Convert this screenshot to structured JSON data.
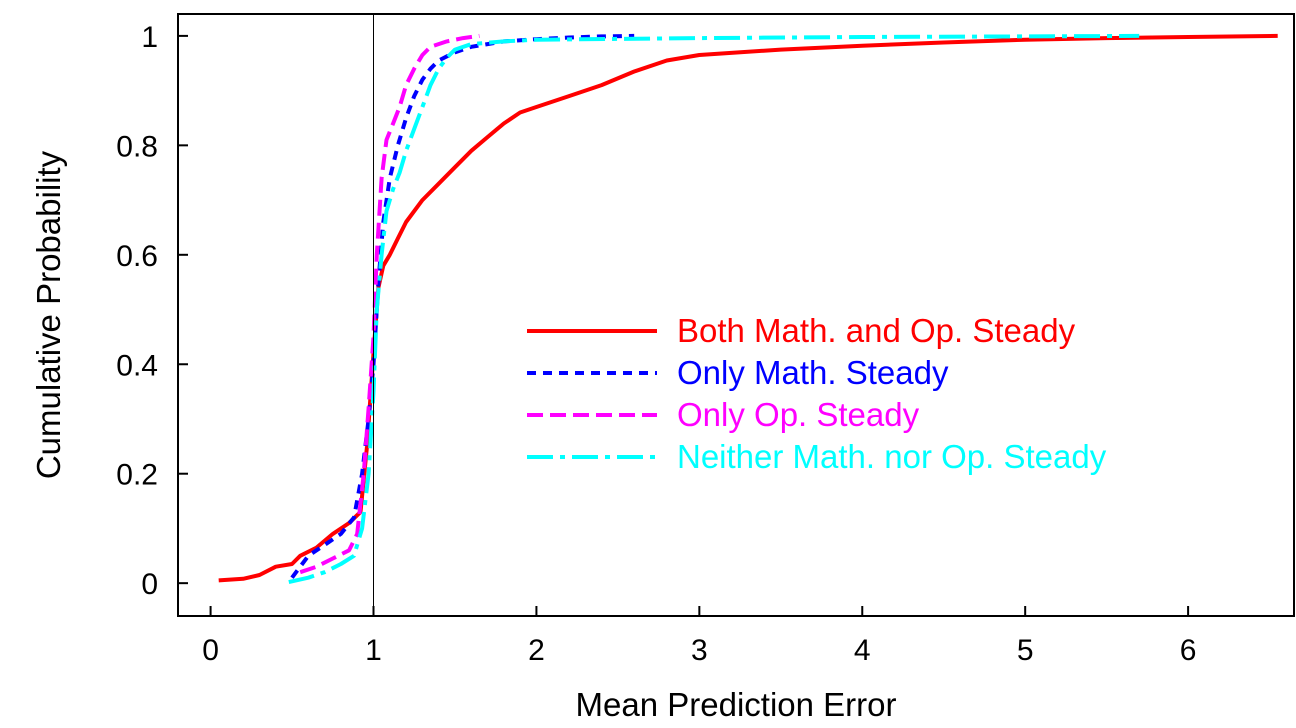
{
  "chart_data": {
    "type": "line",
    "title": "",
    "xlabel": "Mean Prediction Error",
    "ylabel": "Cumulative Probability",
    "xlim": [
      -0.2,
      6.65
    ],
    "ylim": [
      -0.06,
      1.04
    ],
    "xticks": [
      0,
      1,
      2,
      3,
      4,
      5,
      6
    ],
    "xtick_labels": [
      "0",
      "1",
      "2",
      "3",
      "4",
      "5",
      "6"
    ],
    "yticks": [
      0,
      0.2,
      0.4,
      0.6,
      0.8,
      1
    ],
    "ytick_labels": [
      "0",
      "0.2",
      "0.4",
      "0.6",
      "0.8",
      "1"
    ],
    "reference_line_x": 1,
    "grid": false,
    "legend_position": "center-right",
    "series": [
      {
        "name": "Both Math. and Op. Steady",
        "color": "#ff0000",
        "dash": "solid",
        "x": [
          0.05,
          0.2,
          0.3,
          0.4,
          0.5,
          0.55,
          0.65,
          0.75,
          0.85,
          0.92,
          0.96,
          1.0,
          1.03,
          1.06,
          1.1,
          1.15,
          1.2,
          1.3,
          1.4,
          1.5,
          1.6,
          1.7,
          1.8,
          1.9,
          2.0,
          2.2,
          2.4,
          2.6,
          2.8,
          3.0,
          3.5,
          4.0,
          4.5,
          5.0,
          5.5,
          6.0,
          6.55
        ],
        "y": [
          0.005,
          0.008,
          0.015,
          0.03,
          0.035,
          0.05,
          0.065,
          0.09,
          0.11,
          0.13,
          0.25,
          0.42,
          0.54,
          0.58,
          0.6,
          0.63,
          0.66,
          0.7,
          0.73,
          0.76,
          0.79,
          0.815,
          0.84,
          0.86,
          0.87,
          0.89,
          0.91,
          0.935,
          0.955,
          0.965,
          0.975,
          0.982,
          0.988,
          0.993,
          0.996,
          0.998,
          1.0
        ]
      },
      {
        "name": "Only Math. Steady",
        "color": "#0000ff",
        "dash": "short",
        "x": [
          0.5,
          0.55,
          0.6,
          0.7,
          0.8,
          0.88,
          0.93,
          0.97,
          1.0,
          1.03,
          1.06,
          1.1,
          1.15,
          1.2,
          1.25,
          1.3,
          1.35,
          1.4,
          1.5,
          1.6,
          1.8,
          2.0,
          2.2,
          2.4,
          2.6
        ],
        "y": [
          0.01,
          0.03,
          0.05,
          0.07,
          0.09,
          0.12,
          0.2,
          0.3,
          0.4,
          0.55,
          0.66,
          0.74,
          0.8,
          0.85,
          0.89,
          0.92,
          0.94,
          0.955,
          0.97,
          0.98,
          0.99,
          0.994,
          0.997,
          0.999,
          1.0
        ]
      },
      {
        "name": "Only Op. Steady",
        "color": "#ff00ff",
        "dash": "long",
        "x": [
          0.55,
          0.65,
          0.75,
          0.85,
          0.9,
          0.94,
          0.97,
          1.0,
          1.02,
          1.05,
          1.08,
          1.12,
          1.16,
          1.2,
          1.25,
          1.3,
          1.35,
          1.45,
          1.55,
          1.65
        ],
        "y": [
          0.02,
          0.03,
          0.045,
          0.06,
          0.09,
          0.2,
          0.32,
          0.45,
          0.6,
          0.74,
          0.81,
          0.84,
          0.87,
          0.91,
          0.94,
          0.965,
          0.98,
          0.99,
          0.996,
          1.0
        ]
      },
      {
        "name": "Neither Math. nor Op. Steady",
        "color": "#00ffff",
        "dash": "dashdot",
        "x": [
          0.48,
          0.6,
          0.7,
          0.8,
          0.88,
          0.93,
          0.97,
          1.0,
          1.02,
          1.05,
          1.08,
          1.12,
          1.16,
          1.2,
          1.25,
          1.3,
          1.35,
          1.4,
          1.45,
          1.5,
          1.6,
          1.8,
          2.0,
          3.0,
          4.0,
          5.0,
          5.7
        ],
        "y": [
          0.002,
          0.01,
          0.02,
          0.035,
          0.05,
          0.1,
          0.2,
          0.35,
          0.5,
          0.6,
          0.68,
          0.72,
          0.75,
          0.79,
          0.83,
          0.87,
          0.91,
          0.94,
          0.96,
          0.975,
          0.985,
          0.99,
          0.993,
          0.996,
          0.998,
          0.999,
          1.0
        ]
      }
    ]
  }
}
